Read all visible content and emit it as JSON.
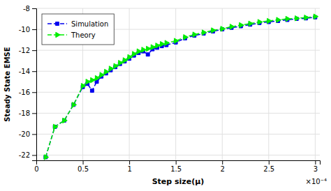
{
  "chart_data": {
    "type": "line",
    "xlabel": "Step size(μ)",
    "ylabel": "Steady State EMSE",
    "annotations": [
      "×10⁻⁴"
    ],
    "x": [
      1e-05,
      2e-05,
      3e-05,
      4e-05,
      5e-05,
      5.5e-05,
      6e-05,
      6.5e-05,
      7e-05,
      7.5e-05,
      8e-05,
      8.5e-05,
      9e-05,
      9.5e-05,
      0.0001,
      0.000105,
      0.00011,
      0.000115,
      0.00012,
      0.000125,
      0.00013,
      0.000135,
      0.00014,
      0.00015,
      0.00016,
      0.00017,
      0.00018,
      0.00019,
      0.0002,
      0.00021,
      0.00022,
      0.00023,
      0.00024,
      0.00025,
      0.00026,
      0.00027,
      0.00028,
      0.00029,
      0.0003
    ],
    "series": [
      {
        "name": "Simulation",
        "color": "#0000ee",
        "marker": "square",
        "line_style": "dashed",
        "values": [
          -22.2,
          -19.3,
          -18.7,
          -17.2,
          -15.5,
          -15.2,
          -15.85,
          -15.0,
          -14.5,
          -14.2,
          -13.9,
          -13.6,
          -13.3,
          -13.05,
          -12.8,
          -12.5,
          -12.25,
          -12.1,
          -12.4,
          -11.9,
          -11.75,
          -11.6,
          -11.5,
          -11.25,
          -10.85,
          -10.6,
          -10.4,
          -10.2,
          -10.0,
          -9.85,
          -9.7,
          -9.55,
          -9.4,
          -9.3,
          -9.2,
          -9.1,
          -9.0,
          -8.95,
          -8.85
        ]
      },
      {
        "name": "Theory",
        "color": "#00ee00",
        "marker": "triangle-right",
        "line_style": "dashed",
        "values": [
          -22.2,
          -19.3,
          -18.7,
          -17.2,
          -15.4,
          -15.0,
          -14.85,
          -14.65,
          -14.35,
          -14.05,
          -13.75,
          -13.5,
          -13.2,
          -12.95,
          -12.65,
          -12.35,
          -12.1,
          -11.95,
          -11.85,
          -11.7,
          -11.55,
          -11.4,
          -11.3,
          -11.1,
          -10.75,
          -10.5,
          -10.3,
          -10.1,
          -9.95,
          -9.75,
          -9.6,
          -9.45,
          -9.3,
          -9.2,
          -9.1,
          -9.0,
          -8.95,
          -8.88,
          -8.78
        ]
      }
    ],
    "xlim": [
      0,
      0.000305
    ],
    "xticks": [
      0,
      {
        "value": 5e-05,
        "label": "0.5"
      },
      {
        "value": 0.0001,
        "label": "1"
      },
      {
        "value": 0.00015,
        "label": "1.5"
      },
      {
        "value": 0.0002,
        "label": "2"
      },
      {
        "value": 0.00025,
        "label": "2.5"
      },
      {
        "value": 0.0003,
        "label": "3"
      }
    ],
    "ylim": [
      -22.5,
      -8
    ],
    "yticks": [
      -22,
      -20,
      -18,
      -16,
      -14,
      -12,
      -10,
      -8
    ],
    "grid": true,
    "legend": "upper left"
  }
}
